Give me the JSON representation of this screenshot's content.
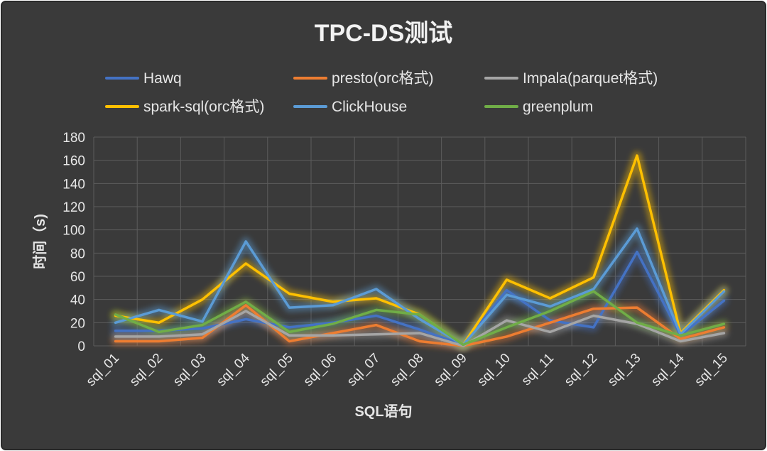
{
  "chart_data": {
    "type": "line",
    "title": "TPC-DS测试",
    "xlabel": "SQL语句",
    "ylabel": "时间（s)",
    "ylim": [
      0,
      180
    ],
    "yticks": [
      0,
      20,
      40,
      60,
      80,
      100,
      120,
      140,
      160,
      180
    ],
    "grid": true,
    "legend_position": "top",
    "categories": [
      "sql_01",
      "sql_02",
      "sql_03",
      "sql_04",
      "sql_05",
      "sql_06",
      "sql_07",
      "sql_08",
      "sql_09",
      "sql_10",
      "sql_11",
      "sql_12",
      "sql_13",
      "sql_14",
      "sql_15"
    ],
    "series": [
      {
        "name": "Hawq",
        "color": "#4472c4",
        "values": [
          13,
          13,
          15,
          23,
          16,
          20,
          26,
          14,
          1,
          48,
          22,
          16,
          81,
          9,
          39
        ]
      },
      {
        "name": "presto(orc格式)",
        "color": "#ed7d31",
        "values": [
          4,
          4,
          7,
          35,
          4,
          11,
          18,
          4,
          0,
          8,
          20,
          32,
          33,
          6,
          16
        ]
      },
      {
        "name": "Impala(parquet格式)",
        "color": "#a5a5a5",
        "values": [
          8,
          8,
          10,
          30,
          9,
          9,
          10,
          11,
          0,
          22,
          12,
          26,
          19,
          4,
          11
        ]
      },
      {
        "name": "spark-sql(orc格式)",
        "color": "#ffc000",
        "values": [
          26,
          20,
          40,
          71,
          45,
          38,
          41,
          27,
          1,
          57,
          41,
          59,
          164,
          11,
          48
        ]
      },
      {
        "name": "ClickHouse",
        "color": "#5b9bd5",
        "values": [
          20,
          31,
          21,
          90,
          33,
          35,
          49,
          23,
          1,
          44,
          34,
          49,
          101,
          10,
          47
        ]
      },
      {
        "name": "greenplum",
        "color": "#70ad47",
        "values": [
          27,
          12,
          18,
          38,
          12,
          19,
          31,
          27,
          1,
          16,
          30,
          47,
          20,
          9,
          19
        ]
      }
    ]
  }
}
